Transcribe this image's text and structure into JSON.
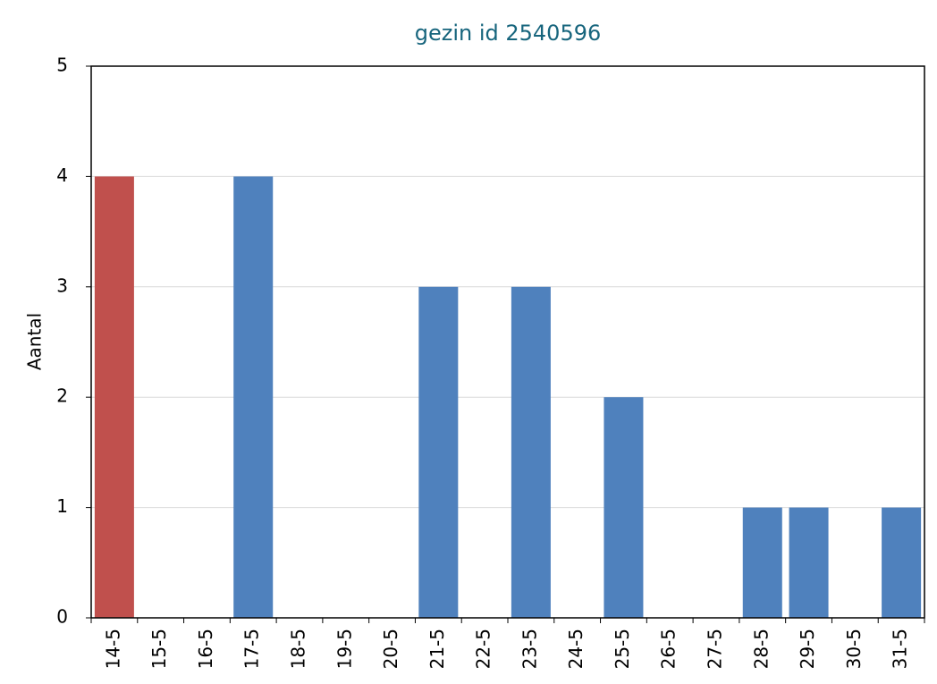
{
  "chart_data": {
    "type": "bar",
    "title": "gezin id 2540596",
    "y_label": "Aantal",
    "categories": [
      "14-5",
      "15-5",
      "16-5",
      "17-5",
      "18-5",
      "19-5",
      "20-5",
      "21-5",
      "22-5",
      "23-5",
      "24-5",
      "25-5",
      "26-5",
      "27-5",
      "28-5",
      "29-5",
      "30-5",
      "31-5"
    ],
    "values": [
      4,
      0,
      0,
      4,
      0,
      0,
      0,
      3,
      0,
      3,
      0,
      2,
      0,
      0,
      1,
      1,
      0,
      1
    ],
    "colors": [
      "#c0504d",
      "#4f81bd",
      "#4f81bd",
      "#4f81bd",
      "#4f81bd",
      "#4f81bd",
      "#4f81bd",
      "#4f81bd",
      "#4f81bd",
      "#4f81bd",
      "#4f81bd",
      "#4f81bd",
      "#4f81bd",
      "#4f81bd",
      "#4f81bd",
      "#4f81bd",
      "#4f81bd",
      "#4f81bd"
    ],
    "ylim": [
      0,
      5
    ],
    "yticks": [
      0,
      1,
      2,
      3,
      4,
      5
    ],
    "grid": true
  }
}
